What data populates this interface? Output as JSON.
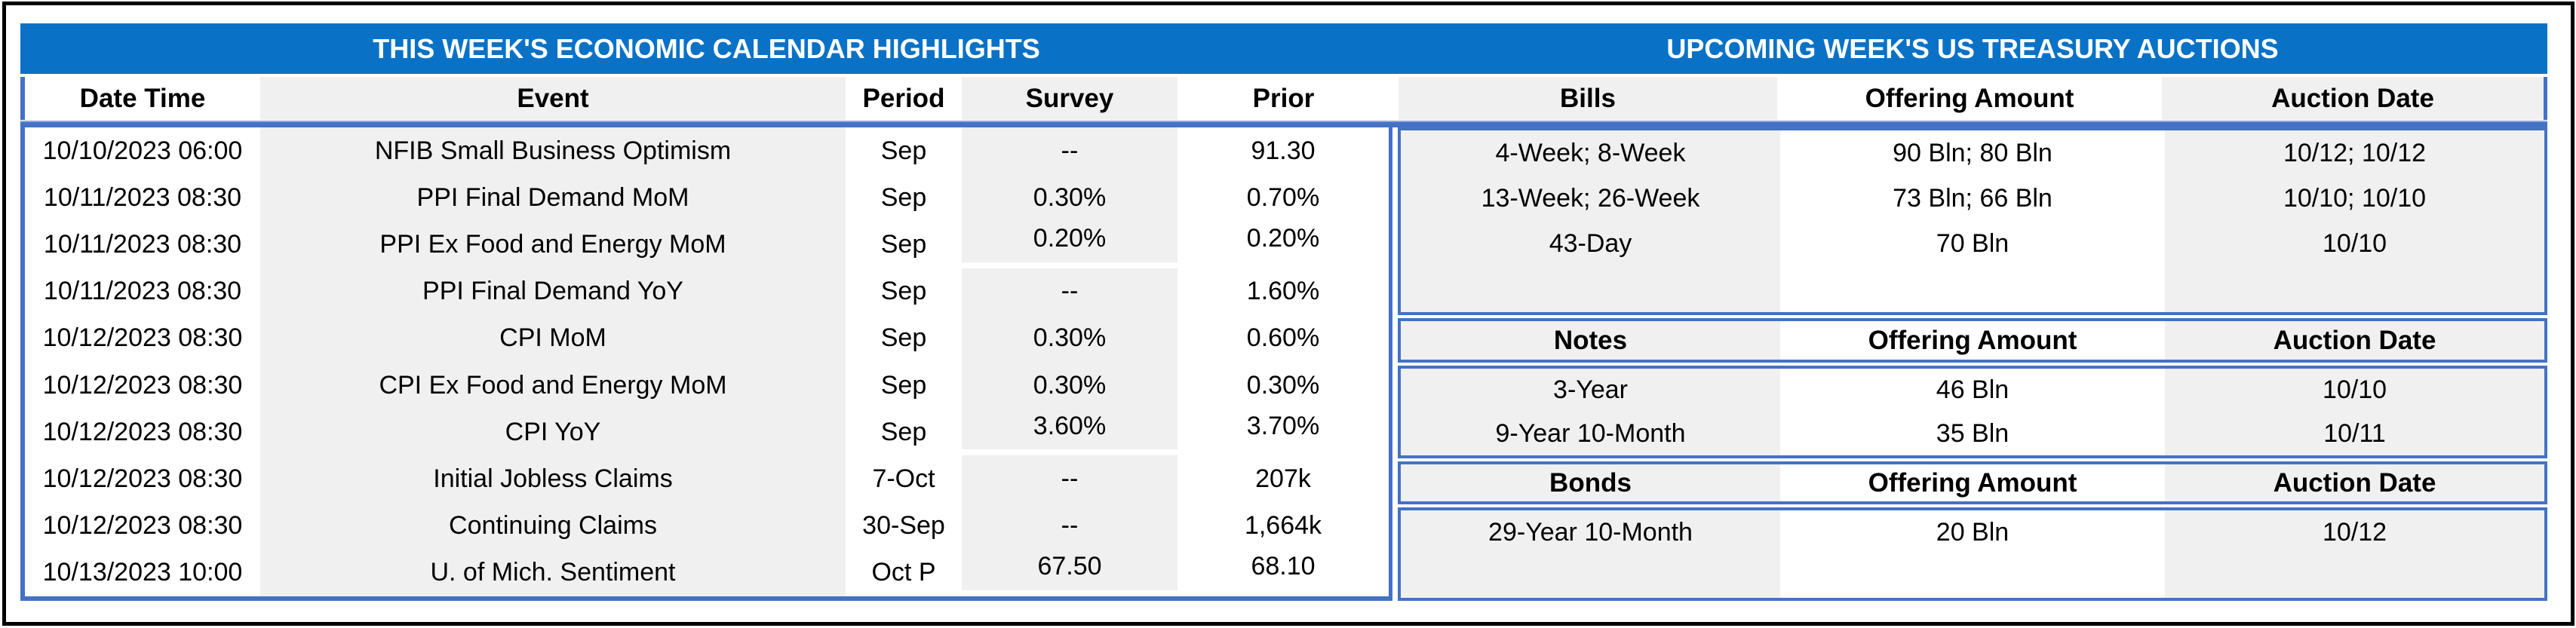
{
  "colors": {
    "title_bar_blue": "#0a72c6",
    "border_blue": "#4472c4",
    "column_stripe_gray": "#f0f0f0",
    "title_text": "#ffffff",
    "body_text": "#000000",
    "outer_frame": "#000000"
  },
  "titles": {
    "calendar": "THIS WEEK'S ECONOMIC CALENDAR HIGHLIGHTS",
    "auctions": "UPCOMING WEEK'S US TREASURY AUCTIONS"
  },
  "calendar": {
    "columns": [
      "Date Time",
      "Event",
      "Period",
      "Survey",
      "Prior"
    ],
    "rows": [
      [
        "10/10/2023 06:00",
        "NFIB Small Business Optimism",
        "Sep",
        "--",
        "91.30"
      ],
      [
        "10/11/2023 08:30",
        "PPI Final Demand MoM",
        "Sep",
        "0.30%",
        "0.70%"
      ],
      [
        "10/11/2023 08:30",
        "PPI Ex Food and Energy MoM",
        "Sep",
        "0.20%",
        "0.20%"
      ],
      [
        "10/11/2023 08:30",
        "PPI Final Demand YoY",
        "Sep",
        "--",
        "1.60%"
      ],
      [
        "10/12/2023 08:30",
        "CPI MoM",
        "Sep",
        "0.30%",
        "0.60%"
      ],
      [
        "10/12/2023 08:30",
        "CPI Ex Food and Energy MoM",
        "Sep",
        "0.30%",
        "0.30%"
      ],
      [
        "10/12/2023 08:30",
        "CPI YoY",
        "Sep",
        "3.60%",
        "3.70%"
      ],
      [
        "10/12/2023 08:30",
        "Initial Jobless Claims",
        "7-Oct",
        "--",
        "207k"
      ],
      [
        "10/12/2023 08:30",
        "Continuing Claims",
        "30-Sep",
        "--",
        "1,664k"
      ],
      [
        "10/13/2023 10:00",
        "U. of Mich. Sentiment",
        "Oct P",
        "67.50",
        "68.10"
      ]
    ]
  },
  "auctions": {
    "sections": [
      {
        "name": "Bills",
        "columns": [
          "Bills",
          "Offering Amount",
          "Auction Date"
        ],
        "rows": [
          [
            "4-Week; 8-Week",
            "90 Bln; 80 Bln",
            "10/12; 10/12"
          ],
          [
            "13-Week; 26-Week",
            "73 Bln; 66 Bln",
            "10/10; 10/10"
          ],
          [
            "43-Day",
            "70 Bln",
            "10/10"
          ]
        ]
      },
      {
        "name": "Notes",
        "columns": [
          "Notes",
          "Offering Amount",
          "Auction Date"
        ],
        "rows": [
          [
            "3-Year",
            "46 Bln",
            "10/10"
          ],
          [
            "9-Year 10-Month",
            "35 Bln",
            "10/11"
          ]
        ]
      },
      {
        "name": "Bonds",
        "columns": [
          "Bonds",
          "Offering Amount",
          "Auction Date"
        ],
        "rows": [
          [
            "29-Year 10-Month",
            "20 Bln",
            "10/12"
          ]
        ]
      }
    ]
  },
  "style_hints": {
    "raised_value_rows": [
      3,
      7,
      10
    ]
  }
}
